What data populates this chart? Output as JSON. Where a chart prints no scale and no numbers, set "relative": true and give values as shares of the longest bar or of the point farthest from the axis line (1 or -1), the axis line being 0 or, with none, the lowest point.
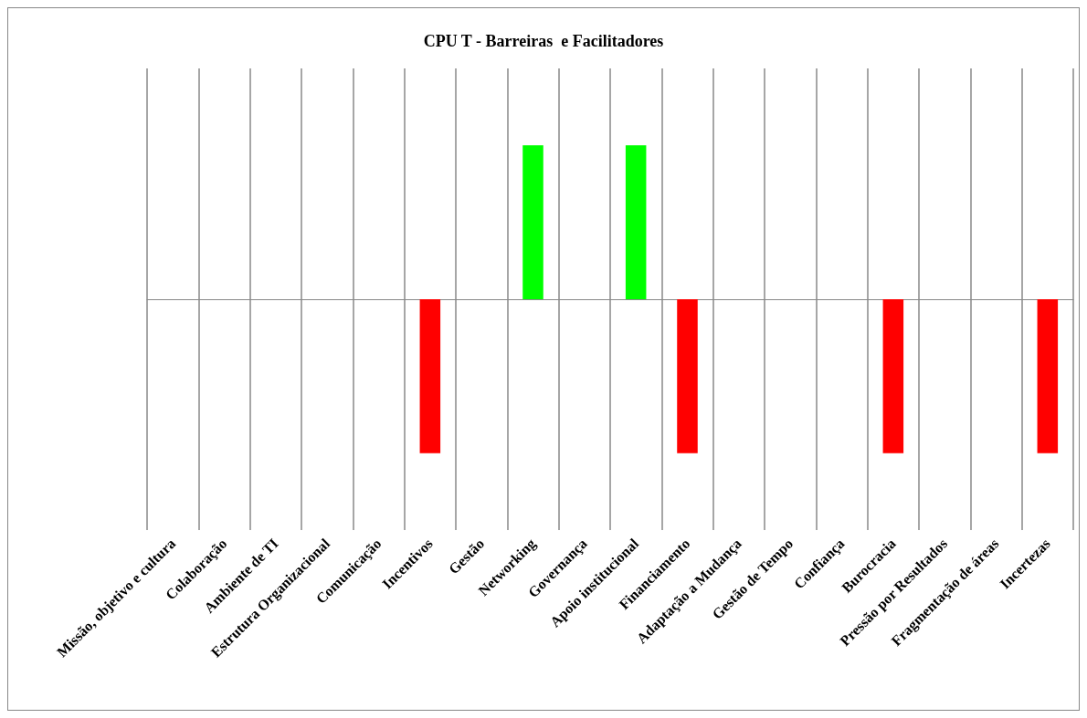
{
  "chart_data": {
    "type": "bar",
    "title": "CPU T - Barreiras  e Facilitadores",
    "relative": true,
    "grid": "x",
    "categories": [
      "Missão, objetivo e cultura",
      "Colaboração",
      "Ambiente de TI",
      "Estrutura Organizacional",
      "Comunicação",
      "Incentivos",
      "Gestão",
      "Networking",
      "Governança",
      "Apoio institucional",
      "Financiamento",
      "Adaptação a Mudança",
      "Gestão de Tempo",
      "Confiança",
      "Burocracia",
      "Pressão por Resultados",
      "Fragmentação de áreas",
      "Incertezas"
    ],
    "values": [
      0,
      0,
      0,
      0,
      0,
      -1,
      0,
      1,
      0,
      1,
      -1,
      0,
      0,
      0,
      -1,
      0,
      0,
      -1
    ],
    "colors": [
      "#ff0000",
      "#ff0000",
      "#ff0000",
      "#ff0000",
      "#ff0000",
      "#ff0000",
      "#00ff00",
      "#00ff00",
      "#00ff00",
      "#00ff00",
      "#ff0000",
      "#ff0000",
      "#ff0000",
      "#ff0000",
      "#ff0000",
      "#ff0000",
      "#ff0000",
      "#ff0000"
    ]
  }
}
